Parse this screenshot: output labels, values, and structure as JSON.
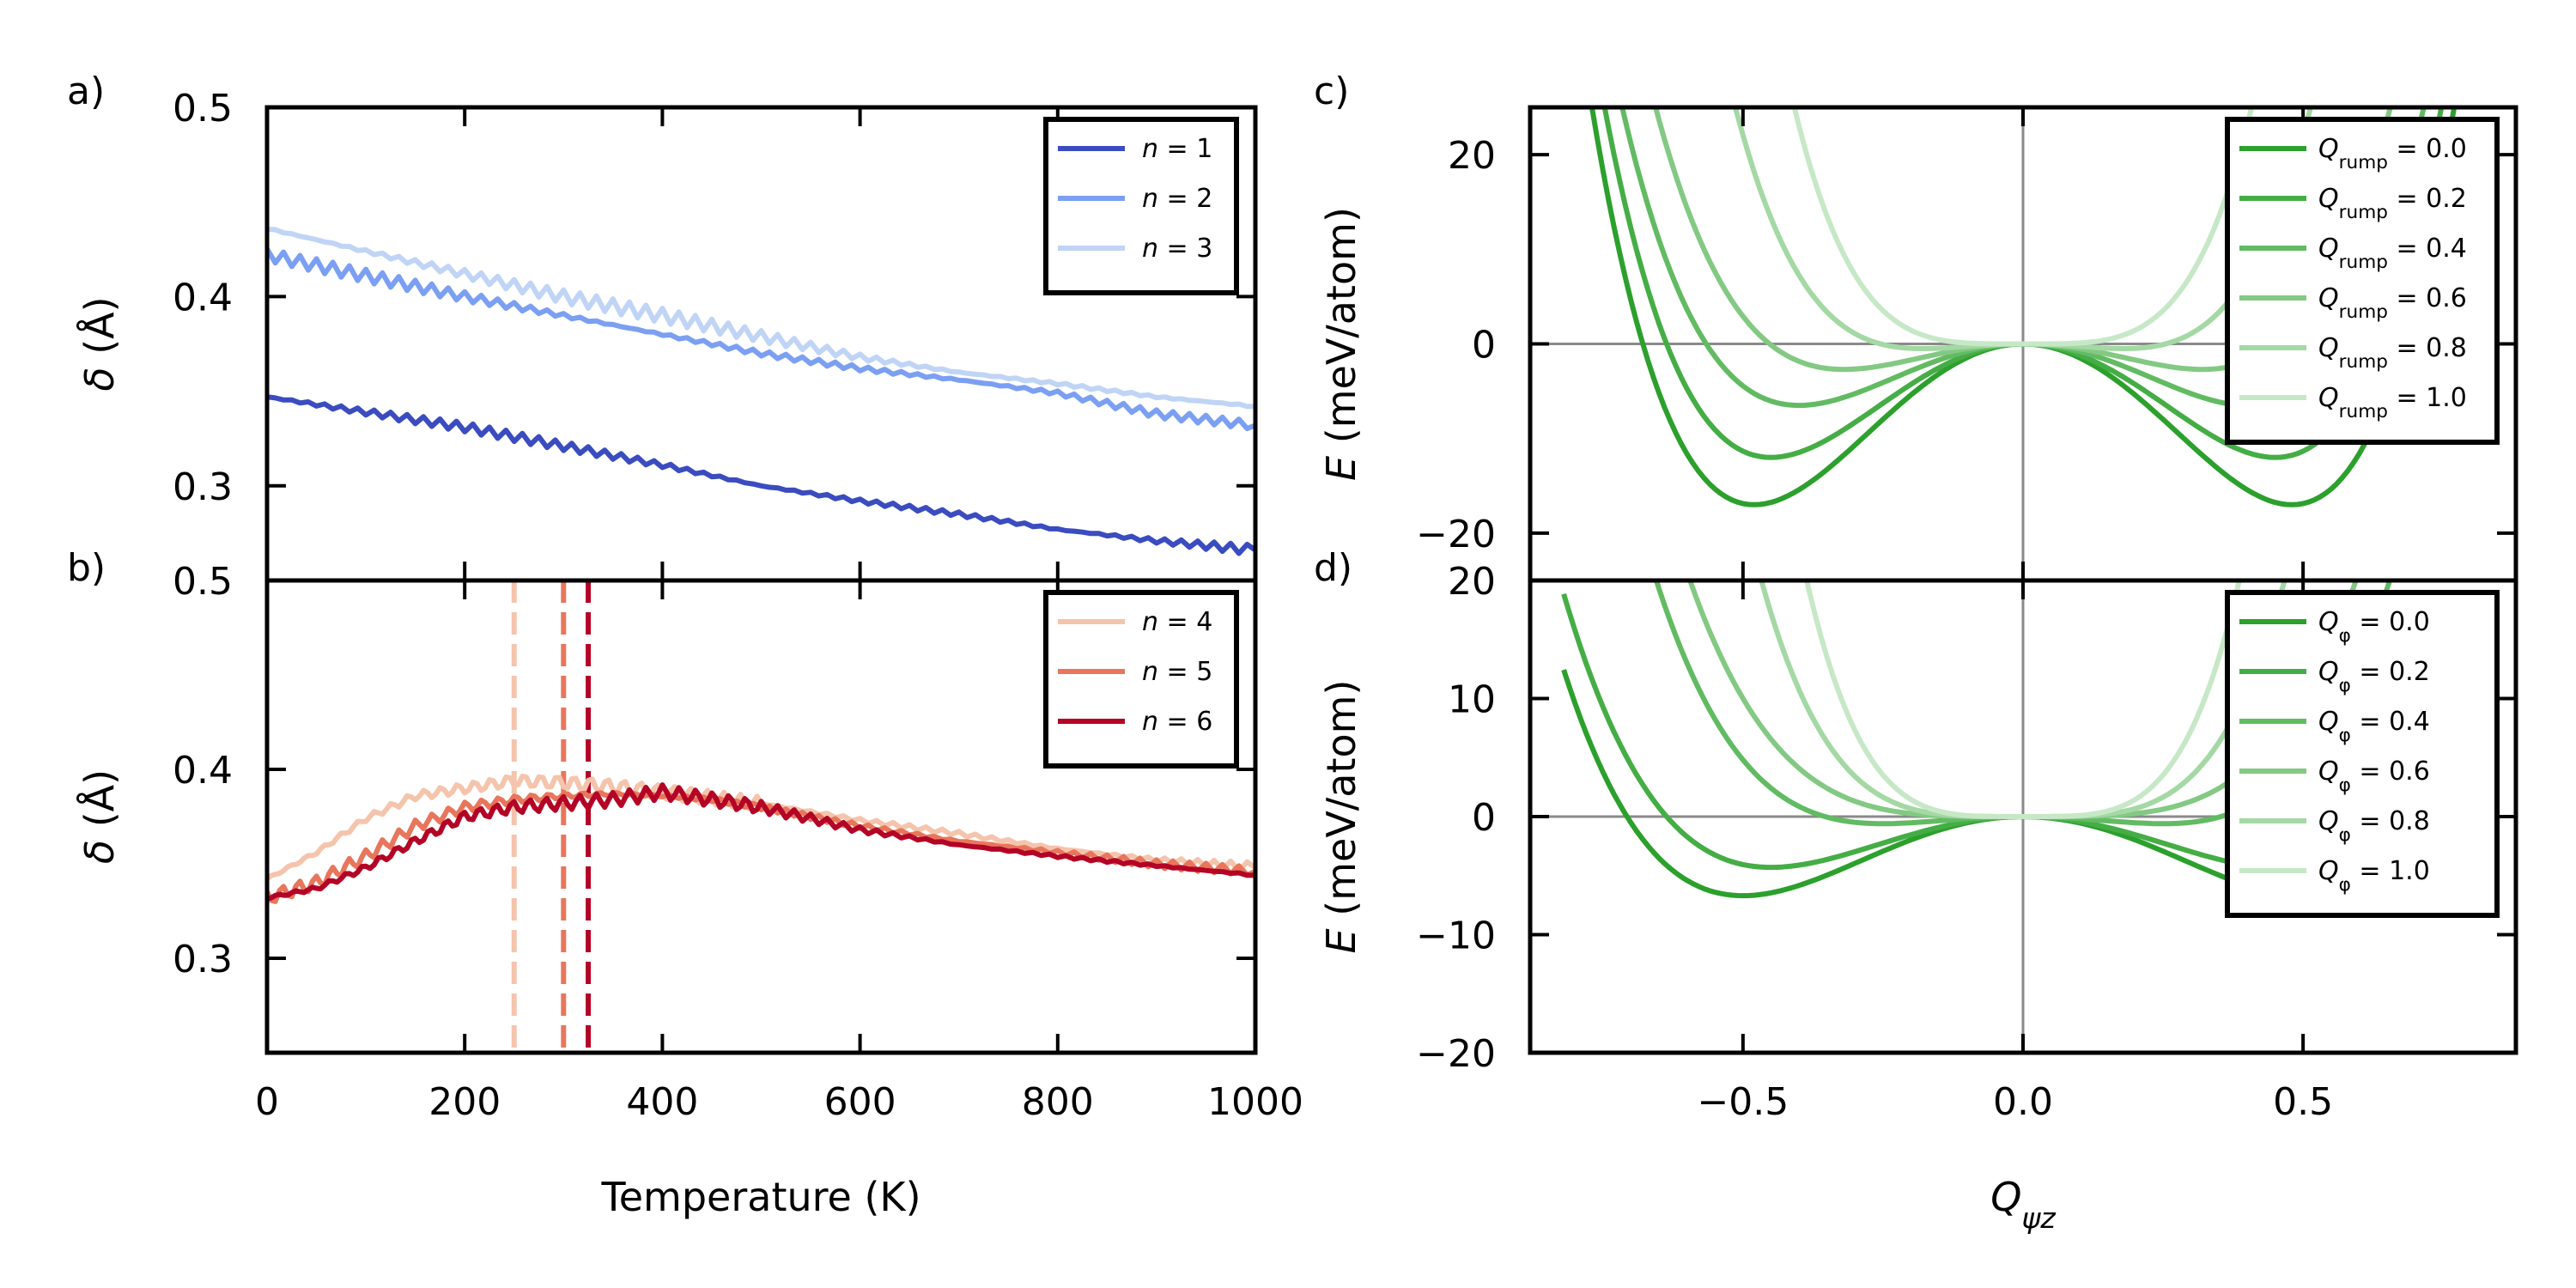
{
  "chart_data": [
    {
      "panel": "a)",
      "type": "line",
      "xlabel": "",
      "ylabel": "δ (Å)",
      "xlim": [
        0,
        1000
      ],
      "ylim": [
        0.25,
        0.5
      ],
      "xticks": [
        0,
        200,
        400,
        600,
        800,
        1000
      ],
      "yticks": [
        "0.3",
        "0.4",
        "0.5"
      ],
      "legend_position": "top-right",
      "series": [
        {
          "name": "n = 1",
          "color": "#3b4cc0",
          "x": [
            0,
            100,
            200,
            300,
            400,
            500,
            600,
            700,
            800,
            900,
            1000
          ],
          "y": [
            0.347,
            0.339,
            0.331,
            0.321,
            0.311,
            0.3,
            0.292,
            0.285,
            0.277,
            0.271,
            0.266
          ]
        },
        {
          "name": "n = 2",
          "color": "#7b9ff2",
          "x": [
            0,
            100,
            200,
            300,
            400,
            500,
            600,
            700,
            800,
            900,
            1000
          ],
          "y": [
            0.422,
            0.411,
            0.4,
            0.39,
            0.38,
            0.37,
            0.362,
            0.356,
            0.349,
            0.338,
            0.332
          ]
        },
        {
          "name": "n = 3",
          "color": "#c0d4f5",
          "x": [
            0,
            100,
            200,
            300,
            400,
            500,
            600,
            700,
            800,
            900,
            1000
          ],
          "y": [
            0.436,
            0.424,
            0.412,
            0.4,
            0.39,
            0.379,
            0.368,
            0.36,
            0.354,
            0.347,
            0.342
          ]
        }
      ]
    },
    {
      "panel": "b)",
      "type": "line",
      "xlabel": "Temperature (K)",
      "ylabel": "δ (Å)",
      "xlim": [
        0,
        1000
      ],
      "ylim": [
        0.25,
        0.5
      ],
      "xticks": [
        0,
        200,
        400,
        600,
        800,
        1000
      ],
      "yticks": [
        "0.3",
        "0.4",
        "0.5"
      ],
      "legend_position": "top-right",
      "vlines": [
        {
          "x": 250,
          "color": "#f5c4ac"
        },
        {
          "x": 300,
          "color": "#e8765c"
        },
        {
          "x": 325,
          "color": "#b40426"
        }
      ],
      "series": [
        {
          "name": "n = 4",
          "color": "#f5c4ac",
          "x": [
            0,
            50,
            100,
            150,
            200,
            250,
            300,
            350,
            400,
            450,
            500,
            600,
            700,
            800,
            900,
            1000
          ],
          "y": [
            0.342,
            0.356,
            0.374,
            0.386,
            0.39,
            0.394,
            0.393,
            0.391,
            0.388,
            0.385,
            0.382,
            0.373,
            0.366,
            0.358,
            0.352,
            0.348
          ]
        },
        {
          "name": "n = 5",
          "color": "#e8765c",
          "x": [
            0,
            50,
            100,
            150,
            200,
            250,
            300,
            350,
            400,
            450,
            500,
            600,
            700,
            800,
            900,
            1000
          ],
          "y": [
            0.332,
            0.34,
            0.354,
            0.37,
            0.38,
            0.384,
            0.386,
            0.387,
            0.386,
            0.384,
            0.38,
            0.37,
            0.362,
            0.356,
            0.35,
            0.346
          ]
        },
        {
          "name": "n = 6",
          "color": "#b40426",
          "x": [
            0,
            50,
            100,
            150,
            200,
            250,
            300,
            350,
            400,
            450,
            500,
            600,
            700,
            800,
            900,
            1000
          ],
          "y": [
            0.332,
            0.337,
            0.348,
            0.362,
            0.375,
            0.38,
            0.382,
            0.384,
            0.388,
            0.384,
            0.38,
            0.368,
            0.36,
            0.354,
            0.349,
            0.344
          ]
        }
      ]
    },
    {
      "panel": "c)",
      "type": "line",
      "xlabel": "",
      "ylabel": "E (meV/atom)",
      "xlim": [
        -0.88,
        0.88
      ],
      "ylim": [
        -25,
        25
      ],
      "xticks": [
        "−0.5",
        "0.0",
        "0.5"
      ],
      "yticks": [
        "−20",
        "0",
        "20"
      ],
      "legend_position": "top-right",
      "function": "E = a·Q^4 − b·Q^2 (double well)",
      "series": [
        {
          "name": "Q_rump = 0.0",
          "color": "#2ca02c",
          "well_depth": -17,
          "well_position": 0.48
        },
        {
          "name": "Q_rump = 0.2",
          "color": "#45ad45",
          "well_depth": -12,
          "well_position": 0.45
        },
        {
          "name": "Q_rump = 0.4",
          "color": "#62bb62",
          "well_depth": -6.5,
          "well_position": 0.4
        },
        {
          "name": "Q_rump = 0.6",
          "color": "#83c983",
          "well_depth": -2.7,
          "well_position": 0.32
        },
        {
          "name": "Q_rump = 0.8",
          "color": "#a4d8a4",
          "well_depth": -0.5,
          "well_position": 0.18
        },
        {
          "name": "Q_rump = 1.0",
          "color": "#c7e8c7",
          "well_depth": 0,
          "well_position": 0
        }
      ]
    },
    {
      "panel": "d)",
      "type": "line",
      "xlabel": "Q_ψz",
      "ylabel": "E (meV/atom)",
      "xlim": [
        -0.88,
        0.88
      ],
      "ylim": [
        -20,
        20
      ],
      "xticks": [
        "−0.5",
        "0.0",
        "0.5"
      ],
      "yticks": [
        "−20",
        "−10",
        "0",
        "10",
        "20"
      ],
      "legend_position": "top-right",
      "function": "E = a·Q^4 − b·Q^2 (double well)",
      "series": [
        {
          "name": "Q_φ = 0.0",
          "color": "#2ca02c",
          "well_depth": -6.7,
          "well_position": 0.5
        },
        {
          "name": "Q_φ = 0.2",
          "color": "#45ad45",
          "well_depth": -4.3,
          "well_position": 0.45
        },
        {
          "name": "Q_φ = 0.4",
          "color": "#62bb62",
          "well_depth": -0.6,
          "well_position": 0.25
        },
        {
          "name": "Q_φ = 0.6",
          "color": "#83c983",
          "well_depth": 0,
          "well_position": 0
        },
        {
          "name": "Q_φ = 0.8",
          "color": "#a4d8a4",
          "well_depth": 0,
          "well_position": 0
        },
        {
          "name": "Q_φ = 1.0",
          "color": "#c7e8c7",
          "well_depth": 0,
          "well_position": 0
        }
      ]
    }
  ]
}
